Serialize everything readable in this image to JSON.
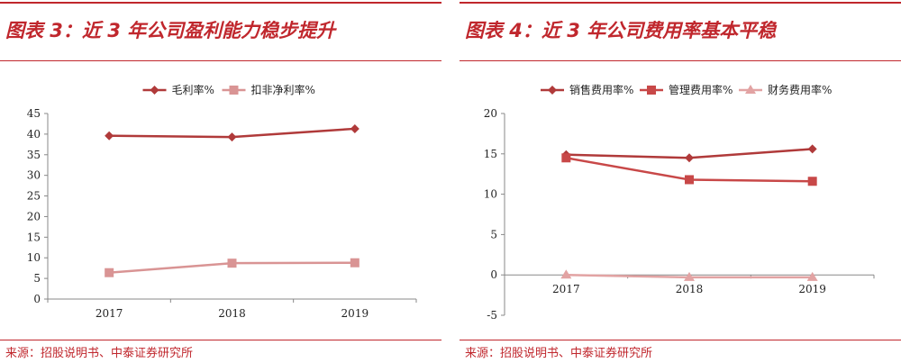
{
  "panels": [
    {
      "title": "图表 3：近 3 年公司盈利能力稳步提升",
      "source": "来源：招股说明书、中泰证券研究所"
    },
    {
      "title": "图表 4：近 3 年公司费用率基本平稳",
      "source": "来源：招股说明书、中泰证券研究所"
    }
  ],
  "chart_data": [
    {
      "type": "line",
      "categories": [
        "2017",
        "2018",
        "2019"
      ],
      "ylim": [
        0,
        45
      ],
      "yticks": [
        0,
        5,
        10,
        15,
        20,
        25,
        30,
        35,
        40,
        45
      ],
      "grid": false,
      "legend": "top-center",
      "series": [
        {
          "name": "毛利率%",
          "values": [
            39.6,
            39.3,
            41.3
          ],
          "color": "#b03a3a",
          "marker": "diamond"
        },
        {
          "name": "扣非净利率%",
          "values": [
            6.4,
            8.7,
            8.8
          ],
          "color": "#d99494",
          "marker": "square"
        }
      ]
    },
    {
      "type": "line",
      "categories": [
        "2017",
        "2018",
        "2019"
      ],
      "ylim": [
        -5,
        20
      ],
      "yticks": [
        -5,
        0,
        5,
        10,
        15,
        20
      ],
      "grid": false,
      "legend": "top-center",
      "series": [
        {
          "name": "销售费用率%",
          "values": [
            14.9,
            14.5,
            15.6
          ],
          "color": "#b03a3a",
          "marker": "diamond"
        },
        {
          "name": "管理费用率%",
          "values": [
            14.5,
            11.8,
            11.6
          ],
          "color": "#c84848",
          "marker": "square"
        },
        {
          "name": "财务费用率%",
          "values": [
            0.0,
            -0.3,
            -0.3
          ],
          "color": "#e2a3a3",
          "marker": "triangle"
        }
      ]
    }
  ]
}
